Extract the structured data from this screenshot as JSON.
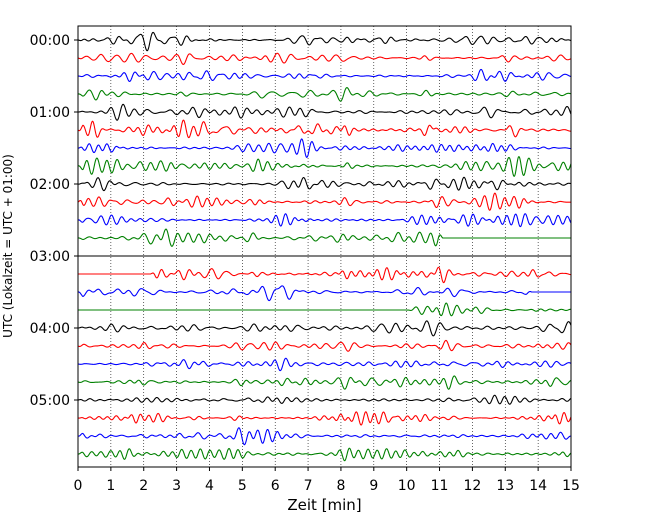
{
  "chart_data": {
    "type": "line",
    "title": "",
    "xlabel": "Zeit  [min]",
    "ylabel": "UTC (Lokalzeit = UTC + 01:00)",
    "xlim": [
      0,
      15
    ],
    "x_ticks": [
      0,
      1,
      2,
      3,
      4,
      5,
      6,
      7,
      8,
      9,
      10,
      11,
      12,
      13,
      14,
      15
    ],
    "x_tick_labels": [
      "0",
      "1",
      "2",
      "3",
      "4",
      "5",
      "6",
      "7",
      "8",
      "9",
      "10",
      "11",
      "12",
      "13",
      "14",
      "15"
    ],
    "y_tick_labels": [
      {
        "label": "00:00",
        "trace_index": 0
      },
      {
        "label": "01:00",
        "trace_index": 4
      },
      {
        "label": "02:00",
        "trace_index": 8
      },
      {
        "label": "03:00",
        "trace_index": 12
      },
      {
        "label": "04:00",
        "trace_index": 16
      },
      {
        "label": "05:00",
        "trace_index": 20
      }
    ],
    "grid": "vertical dotted at each minute",
    "trace_colors": [
      "#000000",
      "#ff0000",
      "#0000ff",
      "#008000"
    ],
    "traces": [
      {
        "hour": 0,
        "quarter": 0,
        "color": "#000000",
        "activity": [
          [
            0,
            15,
            1
          ]
        ]
      },
      {
        "hour": 0,
        "quarter": 1,
        "color": "#ff0000",
        "activity": [
          [
            0,
            15,
            1
          ]
        ]
      },
      {
        "hour": 0,
        "quarter": 2,
        "color": "#0000ff",
        "activity": [
          [
            0,
            15,
            1
          ]
        ]
      },
      {
        "hour": 0,
        "quarter": 3,
        "color": "#008000",
        "activity": [
          [
            0,
            15,
            1
          ]
        ]
      },
      {
        "hour": 1,
        "quarter": 0,
        "color": "#000000",
        "activity": [
          [
            0,
            15,
            1.2
          ]
        ]
      },
      {
        "hour": 1,
        "quarter": 1,
        "color": "#ff0000",
        "activity": [
          [
            0,
            15,
            1.2
          ]
        ]
      },
      {
        "hour": 1,
        "quarter": 2,
        "color": "#0000ff",
        "activity": [
          [
            0,
            15,
            1
          ]
        ]
      },
      {
        "hour": 1,
        "quarter": 3,
        "color": "#008000",
        "activity": [
          [
            0,
            15,
            1
          ]
        ]
      },
      {
        "hour": 2,
        "quarter": 0,
        "color": "#000000",
        "activity": [
          [
            0,
            15,
            1
          ]
        ]
      },
      {
        "hour": 2,
        "quarter": 1,
        "color": "#ff0000",
        "activity": [
          [
            0,
            15,
            1
          ]
        ]
      },
      {
        "hour": 2,
        "quarter": 2,
        "color": "#0000ff",
        "activity": [
          [
            0,
            15,
            1
          ]
        ]
      },
      {
        "hour": 2,
        "quarter": 3,
        "color": "#008000",
        "activity": [
          [
            0,
            11.1,
            1
          ]
        ]
      },
      {
        "hour": 3,
        "quarter": 0,
        "color": "#000000",
        "activity": []
      },
      {
        "hour": 3,
        "quarter": 1,
        "color": "#ff0000",
        "activity": [
          [
            2.2,
            15,
            1
          ]
        ]
      },
      {
        "hour": 3,
        "quarter": 2,
        "color": "#0000ff",
        "activity": [
          [
            0,
            13.8,
            1
          ]
        ]
      },
      {
        "hour": 3,
        "quarter": 3,
        "color": "#008000",
        "activity": [
          [
            10.0,
            15,
            1
          ]
        ]
      },
      {
        "hour": 4,
        "quarter": 0,
        "color": "#000000",
        "activity": [
          [
            0,
            15,
            1
          ]
        ]
      },
      {
        "hour": 4,
        "quarter": 1,
        "color": "#ff0000",
        "activity": [
          [
            0,
            15,
            1
          ]
        ]
      },
      {
        "hour": 4,
        "quarter": 2,
        "color": "#0000ff",
        "activity": [
          [
            0,
            15,
            1
          ]
        ]
      },
      {
        "hour": 4,
        "quarter": 3,
        "color": "#008000",
        "activity": [
          [
            0,
            15,
            1
          ]
        ]
      },
      {
        "hour": 5,
        "quarter": 0,
        "color": "#000000",
        "activity": [
          [
            0,
            15,
            1
          ]
        ]
      },
      {
        "hour": 5,
        "quarter": 1,
        "color": "#ff0000",
        "activity": [
          [
            0,
            15,
            1
          ]
        ]
      },
      {
        "hour": 5,
        "quarter": 2,
        "color": "#0000ff",
        "activity": [
          [
            0,
            15,
            1
          ]
        ]
      },
      {
        "hour": 5,
        "quarter": 3,
        "color": "#008000",
        "activity": [
          [
            0,
            15,
            1
          ]
        ]
      }
    ]
  }
}
